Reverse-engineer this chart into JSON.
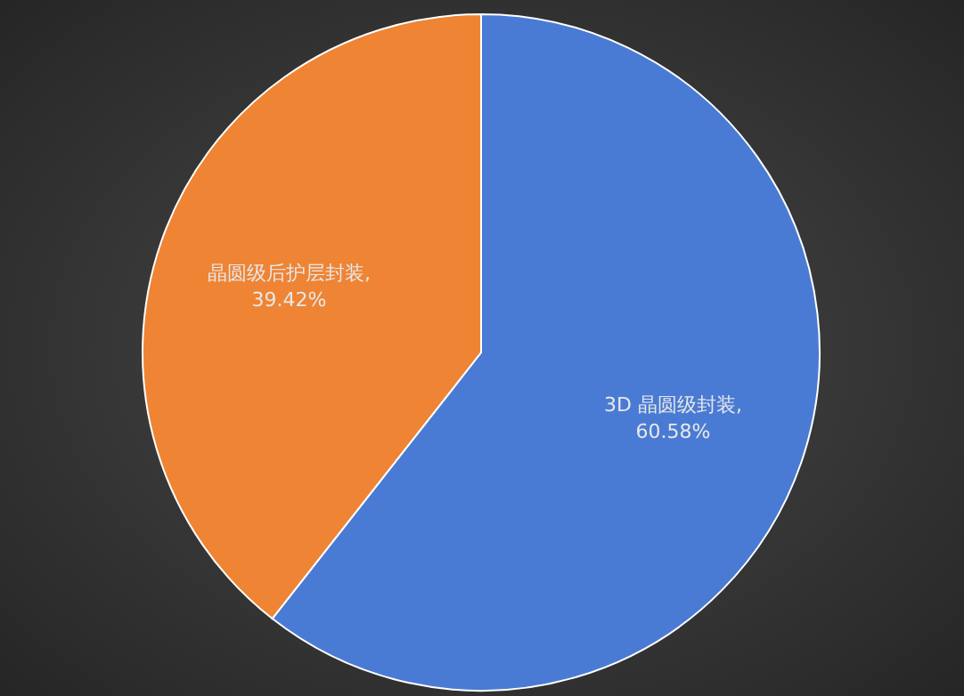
{
  "chart_data": {
    "type": "pie",
    "categories": [
      "3D 晶圆级封装",
      "晶圆级后护层封装"
    ],
    "values": [
      60.58,
      39.42
    ],
    "value_labels": [
      ", 60.58%",
      ", 39.42%"
    ],
    "colors": [
      "#4a7bd4",
      "#ee8434"
    ]
  }
}
